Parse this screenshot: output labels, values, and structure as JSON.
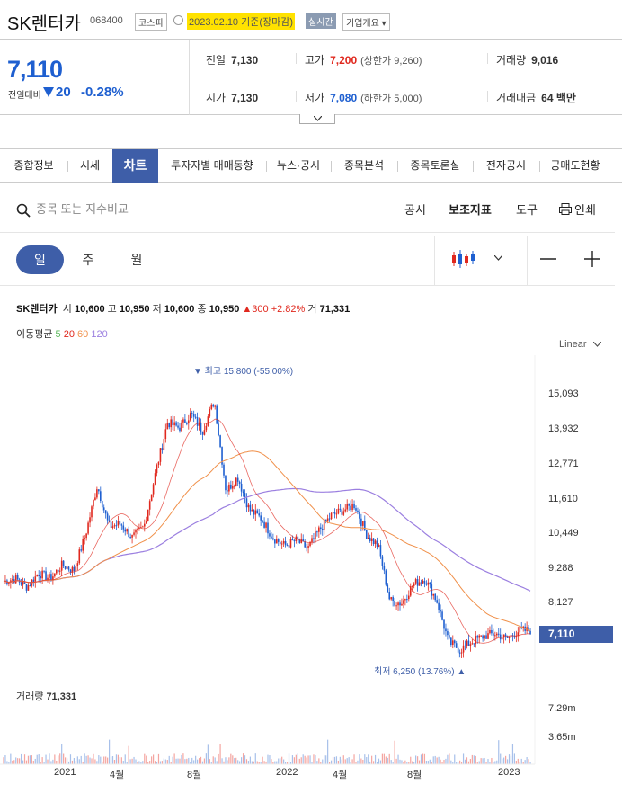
{
  "header": {
    "name": "SK렌터카",
    "code": "068400",
    "market": "코스피",
    "date": "2023.02.10 기준(장마감)",
    "realtime": "실시간",
    "overview": "기업개요"
  },
  "price": {
    "current": "7,110",
    "diff_label": "전일대비",
    "change": "20",
    "change_pct": "-0.28%"
  },
  "stats": {
    "prev_label": "전일",
    "prev": "7,130",
    "high_label": "고가",
    "high": "7,200",
    "upper_limit": "(상한가 9,260)",
    "volume_label": "거래량",
    "volume": "9,016",
    "open_label": "시가",
    "open": "7,130",
    "low_label": "저가",
    "low": "7,080",
    "lower_limit": "(하한가 5,000)",
    "amount_label": "거래대금",
    "amount": "64 백만"
  },
  "tabs": [
    "종합정보",
    "시세",
    "차트",
    "투자자별 매매동향",
    "뉴스·공시",
    "종목분석",
    "종목토론실",
    "전자공시",
    "공매도현황"
  ],
  "toolbar": {
    "search_placeholder": "종목 또는 지수비교",
    "disclosure": "공시",
    "indicator": "보조지표",
    "tools": "도구",
    "print": "인쇄"
  },
  "periods": {
    "day": "일",
    "week": "주",
    "month": "월"
  },
  "chart_info": {
    "name": "SK렌터카",
    "open_label": "시",
    "open": "10,600",
    "high_label": "고",
    "high": "10,950",
    "low_label": "저",
    "low": "10,600",
    "close_label": "종",
    "close": "10,950",
    "change": "▲300",
    "change_pct": "+2.82%",
    "volume_label": "거",
    "volume": "71,331"
  },
  "moving_avg": {
    "label": "이동평균",
    "p5": "5",
    "p20": "20",
    "p60": "60",
    "p120": "120"
  },
  "scale_mode": "Linear",
  "volume_panel": {
    "label": "거래량",
    "value": "71,331",
    "ticks": [
      "7.29m",
      "3.65m"
    ]
  },
  "colors": {
    "up": "#e0281e",
    "down": "#1e5fd0",
    "accent": "#3e5ea8",
    "ma5": "#5cb85c",
    "ma20": "#e0281e",
    "ma60": "#f0904a",
    "ma120": "#9b7fe0"
  },
  "chart_data": {
    "type": "line",
    "y_ticks": [
      "15,093",
      "13,932",
      "12,771",
      "11,610",
      "10,449",
      "9,288",
      "8,127"
    ],
    "ylim": [
      6000,
      16500
    ],
    "x_ticks": [
      "2021",
      "4월",
      "8월",
      "2022",
      "4월",
      "8월",
      "2023"
    ],
    "last_price": "7,110",
    "high_label": "▼ 최고 15,800 (-55.00%)",
    "low_label": "최저 6,250 (13.76%) ▲",
    "series": [
      {
        "values": [
          8900,
          9000,
          8700,
          9200,
          9000,
          9500,
          9300,
          10600,
          12400,
          10900,
          11000,
          10500,
          10900,
          12900,
          14700,
          14500,
          15000,
          14400,
          15500,
          12200,
          12700,
          11500,
          11200,
          10500,
          10200,
          10400,
          10100,
          10800,
          11300,
          11500,
          11700,
          10600,
          10200,
          8200,
          8100,
          8800,
          9000,
          8200,
          6700,
          6400,
          6700,
          6900,
          7000,
          6800,
          7100,
          7110
        ]
      }
    ]
  }
}
